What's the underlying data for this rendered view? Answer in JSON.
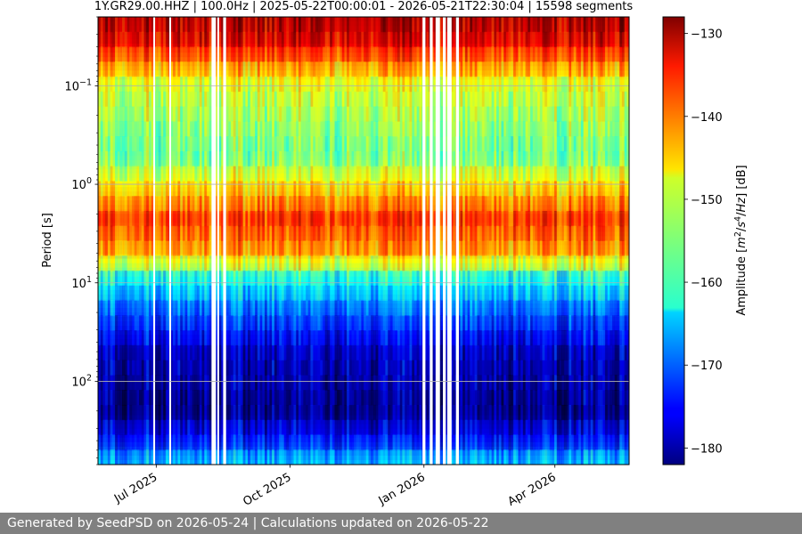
{
  "chart_data": {
    "type": "heatmap",
    "title": "1Y.GR29.00.HHZ | 100.0Hz | 2025-05-22T00:00:01 - 2026-05-21T22:30:04 | 15598 segments",
    "ylabel": "Period [s]",
    "y_scale": "log",
    "y_inverted": true,
    "ylim": [
      0.02,
      700
    ],
    "y_ticks": [
      {
        "value": 0.1,
        "base": "10",
        "exp": "−1"
      },
      {
        "value": 1,
        "base": "10",
        "exp": "0"
      },
      {
        "value": 10,
        "base": "10",
        "exp": "1"
      },
      {
        "value": 100,
        "base": "10",
        "exp": "2"
      }
    ],
    "xlim": [
      "2025-05-22",
      "2026-05-22"
    ],
    "x_ticks": [
      {
        "date": "2025-07-01",
        "label": "Jul 2025"
      },
      {
        "date": "2025-10-01",
        "label": "Oct 2025"
      },
      {
        "date": "2026-01-01",
        "label": "Jan 2026"
      },
      {
        "date": "2026-04-01",
        "label": "Apr 2026"
      }
    ],
    "gaps": [
      [
        "2025-06-29",
        "2025-06-29"
      ],
      [
        "2025-07-10",
        "2025-07-10"
      ],
      [
        "2025-08-08",
        "2025-08-10"
      ],
      [
        "2025-08-12",
        "2025-08-12"
      ],
      [
        "2025-08-16",
        "2025-08-17"
      ],
      [
        "2025-12-31",
        "2026-01-01"
      ],
      [
        "2026-01-05",
        "2026-01-06"
      ],
      [
        "2026-01-09",
        "2026-01-11"
      ],
      [
        "2026-01-14",
        "2026-01-15"
      ],
      [
        "2026-01-17",
        "2026-01-19"
      ],
      [
        "2026-01-23",
        "2026-01-24"
      ]
    ],
    "colorbar": {
      "label": "Amplitude [m²/s⁴/Hz] [dB]",
      "label_parts": [
        "Amplitude [",
        "m",
        "2",
        "/",
        "s",
        "4",
        "/",
        "Hz",
        "] [dB]"
      ],
      "range": [
        -182,
        -128
      ],
      "ticks": [
        -130,
        -140,
        -150,
        -160,
        -170,
        -180
      ],
      "colormap": "jet"
    },
    "grid": true
  },
  "footer": {
    "text": "Generated by SeedPSD on 2026-05-24 | Calculations updated on 2026-05-22"
  }
}
